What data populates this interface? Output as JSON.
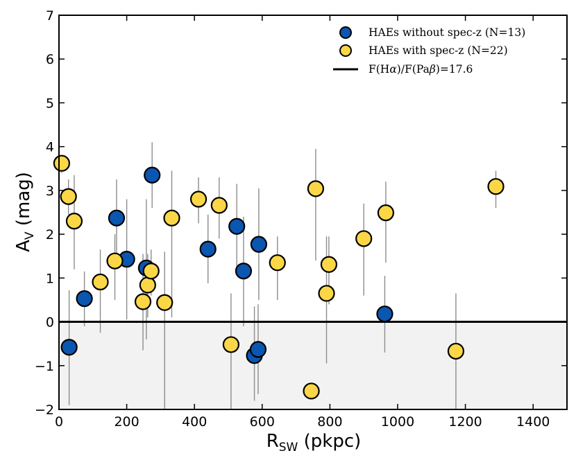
{
  "chart_data": {
    "type": "scatter",
    "title": "",
    "xlabel": {
      "main": "R",
      "sub": "SW",
      "rest": " (pkpc)"
    },
    "ylabel": {
      "main": "A",
      "sub": "V",
      "rest": " (mag)"
    },
    "xlim": [
      0,
      1500
    ],
    "ylim": [
      -2,
      7
    ],
    "xticks": [
      0,
      200,
      400,
      600,
      800,
      1000,
      1200,
      1400
    ],
    "yticks": [
      -2,
      -1,
      0,
      1,
      2,
      3,
      4,
      5,
      6,
      7
    ],
    "grid": false,
    "shaded_region": {
      "y_from": -2,
      "y_to": 0,
      "color": "#f2f2f2"
    },
    "reference_line": {
      "y": 0,
      "label": "F(Hα)/F(Paβ)=17.6",
      "label_parts": [
        "F(H",
        "α",
        ")/F(Pa",
        "β",
        ")=17.6"
      ],
      "color": "#000000"
    },
    "errorbar_color": "#8c8c8c",
    "legend_position": "top-right",
    "series": [
      {
        "name": "HAEs without spec-z (N=13)",
        "color": "#0b56b0",
        "points": [
          {
            "x": 30,
            "y": -0.58,
            "lo": -1.9,
            "hi": 0.72
          },
          {
            "x": 75,
            "y": 0.53,
            "lo": -0.1,
            "hi": 1.15
          },
          {
            "x": 170,
            "y": 2.37,
            "lo": 1.5,
            "hi": 3.25
          },
          {
            "x": 200,
            "y": 1.43,
            "lo": 0.05,
            "hi": 2.8
          },
          {
            "x": 258,
            "y": 1.23,
            "lo": -0.4,
            "hi": 2.8
          },
          {
            "x": 275,
            "y": 3.35,
            "lo": 2.6,
            "hi": 4.1
          },
          {
            "x": 440,
            "y": 1.66,
            "lo": 0.88,
            "hi": 2.45
          },
          {
            "x": 525,
            "y": 2.18,
            "lo": 1.2,
            "hi": 3.15
          },
          {
            "x": 545,
            "y": 1.16,
            "lo": -0.1,
            "hi": 2.4
          },
          {
            "x": 590,
            "y": 1.77,
            "lo": 0.5,
            "hi": 3.05
          },
          {
            "x": 577,
            "y": -0.77,
            "lo": -1.8,
            "hi": 0.35
          },
          {
            "x": 588,
            "y": -0.63,
            "lo": -1.65,
            "hi": 0.4
          },
          {
            "x": 962,
            "y": 0.18,
            "lo": -0.7,
            "hi": 1.05
          }
        ]
      },
      {
        "name": "HAEs with spec-z (N=22)",
        "color": "#fbd747",
        "points": [
          {
            "x": 8,
            "y": 3.62,
            "lo": 3.4,
            "hi": 3.8
          },
          {
            "x": 28,
            "y": 2.86,
            "lo": 2.45,
            "hi": 3.25
          },
          {
            "x": 45,
            "y": 2.3,
            "lo": 1.2,
            "hi": 3.35
          },
          {
            "x": 122,
            "y": 0.91,
            "lo": -0.25,
            "hi": 1.65
          },
          {
            "x": 165,
            "y": 1.39,
            "lo": 0.5,
            "hi": 2.0
          },
          {
            "x": 248,
            "y": 0.46,
            "lo": -0.65,
            "hi": 1.55
          },
          {
            "x": 262,
            "y": 0.84,
            "lo": 0.1,
            "hi": 1.55
          },
          {
            "x": 272,
            "y": 1.16,
            "lo": 0.6,
            "hi": 1.65
          },
          {
            "x": 312,
            "y": 0.44,
            "lo": -2.0,
            "hi": 1.6
          },
          {
            "x": 333,
            "y": 2.37,
            "lo": 0.1,
            "hi": 3.45
          },
          {
            "x": 412,
            "y": 2.8,
            "lo": 2.25,
            "hi": 3.3
          },
          {
            "x": 473,
            "y": 2.66,
            "lo": 1.9,
            "hi": 3.3
          },
          {
            "x": 508,
            "y": -0.52,
            "lo": -2.0,
            "hi": 0.65
          },
          {
            "x": 645,
            "y": 1.35,
            "lo": 0.5,
            "hi": 1.95
          },
          {
            "x": 745,
            "y": -1.58,
            "lo": -1.75,
            "hi": -1.4
          },
          {
            "x": 758,
            "y": 3.04,
            "lo": 1.4,
            "hi": 3.95
          },
          {
            "x": 790,
            "y": 0.65,
            "lo": -0.95,
            "hi": 1.95
          },
          {
            "x": 797,
            "y": 1.31,
            "lo": 0.4,
            "hi": 1.95
          },
          {
            "x": 900,
            "y": 1.9,
            "lo": 0.6,
            "hi": 2.7
          },
          {
            "x": 965,
            "y": 2.49,
            "lo": 1.35,
            "hi": 3.2
          },
          {
            "x": 1172,
            "y": -0.67,
            "lo": -2.0,
            "hi": 0.65
          },
          {
            "x": 1290,
            "y": 3.09,
            "lo": 2.6,
            "hi": 3.45
          }
        ]
      }
    ]
  }
}
